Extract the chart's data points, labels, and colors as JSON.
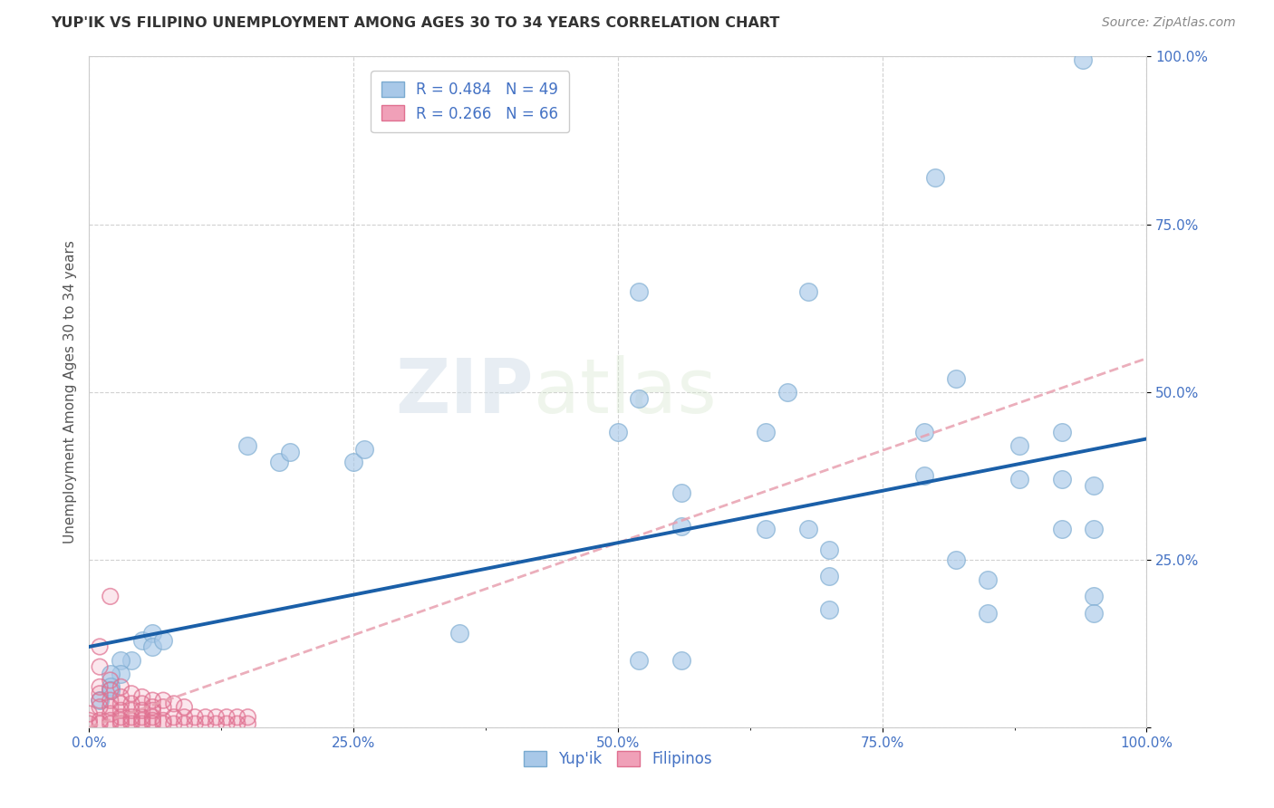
{
  "title": "YUP'IK VS FILIPINO UNEMPLOYMENT AMONG AGES 30 TO 34 YEARS CORRELATION CHART",
  "source": "Source: ZipAtlas.com",
  "ylabel": "Unemployment Among Ages 30 to 34 years",
  "xlim": [
    0,
    1.0
  ],
  "ylim": [
    0,
    1.0
  ],
  "xtick_labels": [
    "0.0%",
    "",
    "25.0%",
    "",
    "50.0%",
    "",
    "75.0%",
    "",
    "100.0%"
  ],
  "xtick_values": [
    0.0,
    0.125,
    0.25,
    0.375,
    0.5,
    0.625,
    0.75,
    0.875,
    1.0
  ],
  "ytick_labels": [
    "100.0%",
    "75.0%",
    "50.0%",
    "25.0%",
    ""
  ],
  "ytick_values": [
    1.0,
    0.75,
    0.5,
    0.25,
    0.0
  ],
  "watermark_zip": "ZIP",
  "watermark_atlas": "atlas",
  "legend_entries": [
    {
      "label": "R = 0.484   N = 49",
      "color": "#a8c8e8"
    },
    {
      "label": "R = 0.266   N = 66",
      "color": "#f4a0b0"
    }
  ],
  "yupik_color": "#a8c8e8",
  "yupik_edge": "#7aaad0",
  "filipino_color": "#f0a0b8",
  "filipino_edge": "#e07090",
  "yupik_line_color": "#1a5fa8",
  "filipino_line_color": "#e8a0b0",
  "yupik_scatter": [
    [
      0.94,
      0.995
    ],
    [
      0.8,
      0.82
    ],
    [
      0.52,
      0.65
    ],
    [
      0.68,
      0.65
    ],
    [
      0.52,
      0.49
    ],
    [
      0.66,
      0.5
    ],
    [
      0.82,
      0.52
    ],
    [
      0.5,
      0.44
    ],
    [
      0.64,
      0.44
    ],
    [
      0.64,
      0.295
    ],
    [
      0.68,
      0.295
    ],
    [
      0.79,
      0.44
    ],
    [
      0.79,
      0.375
    ],
    [
      0.88,
      0.42
    ],
    [
      0.88,
      0.37
    ],
    [
      0.92,
      0.44
    ],
    [
      0.92,
      0.37
    ],
    [
      0.92,
      0.295
    ],
    [
      0.95,
      0.36
    ],
    [
      0.95,
      0.295
    ],
    [
      0.95,
      0.195
    ],
    [
      0.95,
      0.17
    ],
    [
      0.82,
      0.25
    ],
    [
      0.85,
      0.22
    ],
    [
      0.85,
      0.17
    ],
    [
      0.7,
      0.265
    ],
    [
      0.7,
      0.225
    ],
    [
      0.7,
      0.175
    ],
    [
      0.56,
      0.35
    ],
    [
      0.56,
      0.3
    ],
    [
      0.52,
      0.1
    ],
    [
      0.56,
      0.1
    ],
    [
      0.35,
      0.14
    ],
    [
      0.15,
      0.42
    ],
    [
      0.18,
      0.395
    ],
    [
      0.19,
      0.41
    ],
    [
      0.25,
      0.395
    ],
    [
      0.26,
      0.415
    ],
    [
      0.05,
      0.13
    ],
    [
      0.06,
      0.14
    ],
    [
      0.06,
      0.12
    ],
    [
      0.07,
      0.13
    ],
    [
      0.04,
      0.1
    ],
    [
      0.03,
      0.1
    ],
    [
      0.03,
      0.08
    ],
    [
      0.02,
      0.08
    ],
    [
      0.02,
      0.06
    ],
    [
      0.02,
      0.055
    ],
    [
      0.01,
      0.04
    ]
  ],
  "filipino_scatter": [
    [
      0.02,
      0.195
    ],
    [
      0.01,
      0.12
    ],
    [
      0.01,
      0.09
    ],
    [
      0.02,
      0.07
    ],
    [
      0.02,
      0.055
    ],
    [
      0.02,
      0.04
    ],
    [
      0.03,
      0.06
    ],
    [
      0.03,
      0.045
    ],
    [
      0.03,
      0.035
    ],
    [
      0.04,
      0.05
    ],
    [
      0.04,
      0.035
    ],
    [
      0.05,
      0.045
    ],
    [
      0.05,
      0.035
    ],
    [
      0.06,
      0.04
    ],
    [
      0.06,
      0.03
    ],
    [
      0.07,
      0.04
    ],
    [
      0.07,
      0.03
    ],
    [
      0.08,
      0.035
    ],
    [
      0.09,
      0.03
    ],
    [
      0.01,
      0.06
    ],
    [
      0.01,
      0.05
    ],
    [
      0.01,
      0.04
    ],
    [
      0.01,
      0.03
    ],
    [
      0.02,
      0.03
    ],
    [
      0.02,
      0.02
    ],
    [
      0.03,
      0.025
    ],
    [
      0.03,
      0.015
    ],
    [
      0.04,
      0.025
    ],
    [
      0.04,
      0.015
    ],
    [
      0.05,
      0.025
    ],
    [
      0.05,
      0.015
    ],
    [
      0.06,
      0.025
    ],
    [
      0.06,
      0.015
    ],
    [
      0.0,
      0.02
    ],
    [
      0.0,
      0.01
    ],
    [
      0.0,
      0.005
    ],
    [
      0.01,
      0.01
    ],
    [
      0.01,
      0.005
    ],
    [
      0.02,
      0.01
    ],
    [
      0.02,
      0.005
    ],
    [
      0.03,
      0.01
    ],
    [
      0.03,
      0.005
    ],
    [
      0.04,
      0.01
    ],
    [
      0.04,
      0.005
    ],
    [
      0.05,
      0.01
    ],
    [
      0.05,
      0.005
    ],
    [
      0.06,
      0.01
    ],
    [
      0.06,
      0.005
    ],
    [
      0.07,
      0.01
    ],
    [
      0.07,
      0.005
    ],
    [
      0.08,
      0.005
    ],
    [
      0.09,
      0.005
    ],
    [
      0.1,
      0.005
    ],
    [
      0.11,
      0.005
    ],
    [
      0.12,
      0.005
    ],
    [
      0.13,
      0.005
    ],
    [
      0.14,
      0.005
    ],
    [
      0.08,
      0.015
    ],
    [
      0.09,
      0.015
    ],
    [
      0.1,
      0.015
    ],
    [
      0.11,
      0.015
    ],
    [
      0.12,
      0.015
    ],
    [
      0.13,
      0.015
    ],
    [
      0.14,
      0.015
    ],
    [
      0.15,
      0.015
    ],
    [
      0.15,
      0.005
    ]
  ],
  "yupik_trendline": [
    0.0,
    0.12,
    1.0,
    0.43
  ],
  "filipino_trendline": [
    0.0,
    0.0,
    1.0,
    0.55
  ],
  "background_color": "#ffffff",
  "grid_color": "#cccccc",
  "axis_color": "#cccccc",
  "tick_color": "#4472c4",
  "ylabel_color": "#555555",
  "title_color": "#333333"
}
